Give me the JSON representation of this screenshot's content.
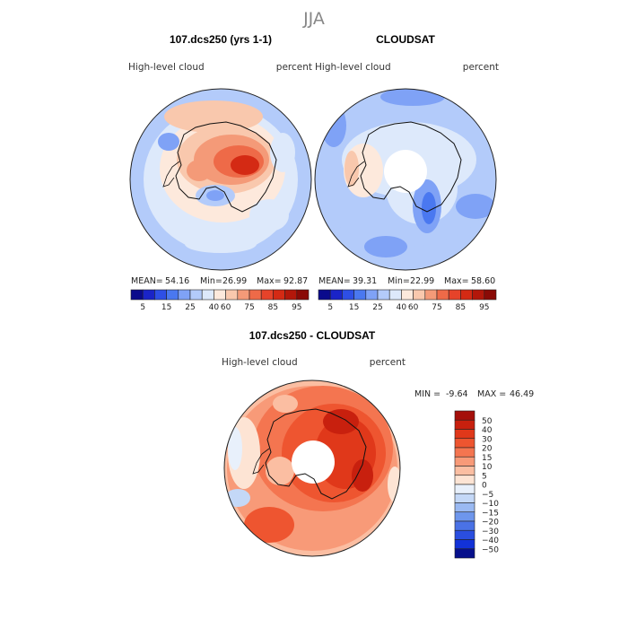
{
  "chart_data": [
    {
      "type": "heatmap",
      "title": "107.dcs250 (yrs 1-1)",
      "variable": "High-level cloud",
      "units": "percent",
      "stats": {
        "mean_label": "MEAN=",
        "mean": "54.16",
        "min_label": "Min=",
        "min": "26.99",
        "max_label": "Max=",
        "max": "92.87"
      },
      "colorbar": {
        "labels": [
          "5",
          "15",
          "25",
          "40",
          "60",
          "75",
          "85",
          "95"
        ],
        "colors": [
          "#0a0a8c",
          "#1a24c8",
          "#2e4fe6",
          "#4a78f0",
          "#7fa2f6",
          "#b3cbfa",
          "#dde9fb",
          "#fde9dc",
          "#f9c8ad",
          "#f49a78",
          "#ee6a48",
          "#e6432a",
          "#d42a14",
          "#b3170a",
          "#8a0a06"
        ]
      }
    },
    {
      "type": "heatmap",
      "title": "CLOUDSAT",
      "variable": "High-level cloud",
      "units": "percent",
      "stats": {
        "mean_label": "MEAN=",
        "mean": "39.31",
        "min_label": "Min=",
        "min": "22.99",
        "max_label": "Max=",
        "max": "58.60"
      },
      "colorbar": {
        "labels": [
          "5",
          "15",
          "25",
          "40",
          "60",
          "75",
          "85",
          "95"
        ],
        "colors": [
          "#0a0a8c",
          "#1a24c8",
          "#2e4fe6",
          "#4a78f0",
          "#7fa2f6",
          "#b3cbfa",
          "#dde9fb",
          "#fde9dc",
          "#f9c8ad",
          "#f49a78",
          "#ee6a48",
          "#e6432a",
          "#d42a14",
          "#b3170a",
          "#8a0a06"
        ]
      }
    },
    {
      "type": "heatmap",
      "title": "107.dcs250 - CLOUDSAT",
      "variable": "High-level cloud",
      "units": "percent",
      "stats": {
        "min_label": "MIN =",
        "min": "-9.64",
        "max_label": "MAX =",
        "max": "46.49"
      },
      "colorbar": {
        "labels": [
          "50",
          "40",
          "30",
          "20",
          "15",
          "10",
          "5",
          "0",
          "−5",
          "−10",
          "−15",
          "−20",
          "−30",
          "−40",
          "−50"
        ],
        "colors": [
          "#a50f0a",
          "#c8200e",
          "#e0381a",
          "#ee5530",
          "#f47550",
          "#f89a78",
          "#fbbea2",
          "#fde4d4",
          "#e8f0fb",
          "#c4d8f7",
          "#9ab9f2",
          "#6e96ec",
          "#4a72e6",
          "#2a4ee0",
          "#1232d8",
          "#07108c"
        ]
      }
    }
  ],
  "figure": {
    "title": "JJA"
  }
}
